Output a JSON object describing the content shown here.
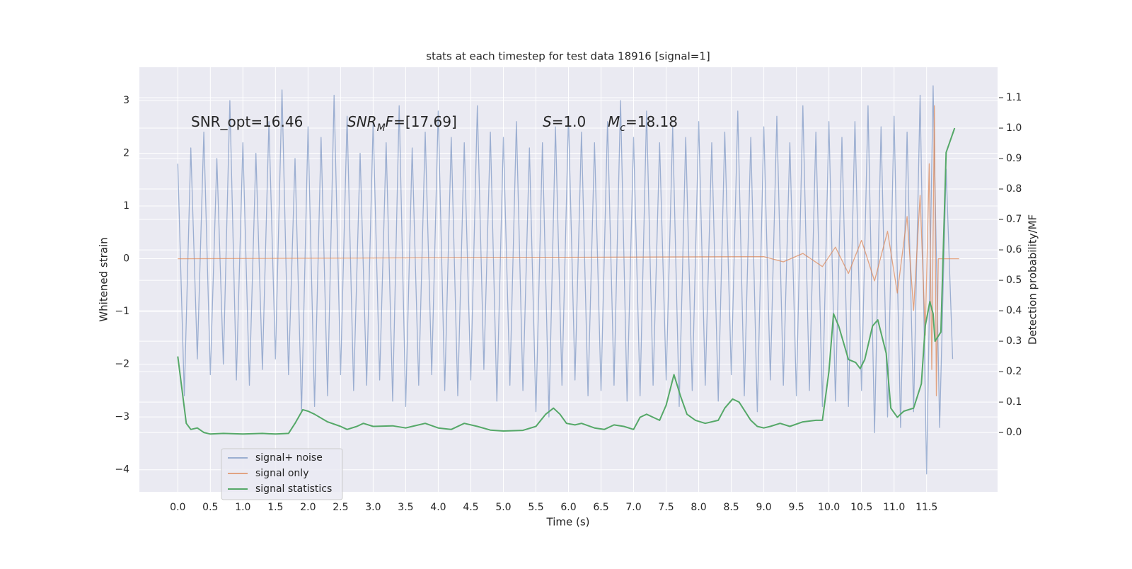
{
  "chart_data": {
    "type": "line",
    "title": "stats at each timestep for test data 18916 [signal=1]",
    "xlabel": "Time (s)",
    "ylabel": "Whitened strain",
    "y2label": "Detection probability/MF",
    "xlim": [
      -0.59,
      12.59
    ],
    "ylim": [
      -4.42,
      3.63
    ],
    "y2lim": [
      -0.195,
      1.2
    ],
    "xticks": [
      {
        "value": 0,
        "label": "0.0"
      },
      {
        "value": 0.5,
        "label": "0.5"
      },
      {
        "value": 1,
        "label": "1.0"
      },
      {
        "value": 1.5,
        "label": "1.5"
      },
      {
        "value": 2,
        "label": "2.0"
      },
      {
        "value": 2.5,
        "label": "2.5"
      },
      {
        "value": 3,
        "label": "3.0"
      },
      {
        "value": 3.5,
        "label": "3.5"
      },
      {
        "value": 4,
        "label": "4.0"
      },
      {
        "value": 4.5,
        "label": "4.5"
      },
      {
        "value": 5,
        "label": "5.0"
      },
      {
        "value": 5.5,
        "label": "5.5"
      },
      {
        "value": 6,
        "label": "6.0"
      },
      {
        "value": 6.5,
        "label": "6.5"
      },
      {
        "value": 7,
        "label": "7.0"
      },
      {
        "value": 7.5,
        "label": "7.5"
      },
      {
        "value": 8,
        "label": "8.0"
      },
      {
        "value": 8.5,
        "label": "8.5"
      },
      {
        "value": 9,
        "label": "9.0"
      },
      {
        "value": 9.5,
        "label": "9.5"
      },
      {
        "value": 10,
        "label": "10.0"
      },
      {
        "value": 10.5,
        "label": "10.5"
      },
      {
        "value": 11,
        "label": "11.0"
      },
      {
        "value": 11.5,
        "label": "11.5"
      }
    ],
    "yticks": [
      {
        "value": -4,
        "label": "−4"
      },
      {
        "value": -3,
        "label": "−3"
      },
      {
        "value": -2,
        "label": "−2"
      },
      {
        "value": -1,
        "label": "−1"
      },
      0,
      1,
      2,
      3
    ],
    "y2ticks": [
      {
        "value": 0,
        "label": "0.0"
      },
      0.1,
      0.2,
      0.3,
      0.4,
      0.5,
      0.6,
      0.7,
      0.8,
      0.9,
      {
        "value": 1,
        "label": "1.0"
      },
      1.1
    ],
    "grid": true,
    "legend": "lower left",
    "annotations": [
      {
        "segments": [
          {
            "text": "SNR_opt=16.46"
          }
        ]
      },
      {
        "segments": [
          {
            "text": "SNR",
            "style": "italic"
          },
          {
            "text": "M",
            "style": "sub"
          },
          {
            "text": "F",
            "style": "italic"
          },
          {
            "text": "=[17.69]"
          }
        ]
      },
      {
        "segments": [
          {
            "text": "S",
            "style": "italic"
          },
          {
            "text": "=1.0"
          }
        ]
      },
      {
        "segments": [
          {
            "text": "M",
            "style": "italic"
          },
          {
            "text": "c",
            "style": "sub"
          },
          {
            "text": "=18.18"
          }
        ]
      }
    ],
    "series": [
      {
        "name": "signal+ noise",
        "color": "#4c72b0",
        "opacity": 0.5,
        "x": [
          0,
          0.1,
          0.2,
          0.3,
          0.4,
          0.5,
          0.6,
          0.7,
          0.8,
          0.9,
          1,
          1.1,
          1.2,
          1.3,
          1.4,
          1.5,
          1.6,
          1.7,
          1.8,
          1.9,
          2,
          2.1,
          2.2,
          2.3,
          2.4,
          2.5,
          2.6,
          2.7,
          2.8,
          2.9,
          3,
          3.1,
          3.2,
          3.3,
          3.4,
          3.5,
          3.6,
          3.7,
          3.8,
          3.9,
          4,
          4.1,
          4.2,
          4.3,
          4.4,
          4.5,
          4.6,
          4.7,
          4.8,
          4.9,
          5,
          5.1,
          5.2,
          5.3,
          5.4,
          5.5,
          5.6,
          5.7,
          5.8,
          5.9,
          6,
          6.1,
          6.2,
          6.3,
          6.4,
          6.5,
          6.6,
          6.7,
          6.8,
          6.9,
          7,
          7.1,
          7.2,
          7.3,
          7.4,
          7.5,
          7.6,
          7.7,
          7.8,
          7.9,
          8,
          8.1,
          8.2,
          8.3,
          8.4,
          8.5,
          8.6,
          8.7,
          8.8,
          8.9,
          9,
          9.1,
          9.2,
          9.3,
          9.4,
          9.5,
          9.6,
          9.7,
          9.8,
          9.9,
          10,
          10.1,
          10.2,
          10.3,
          10.4,
          10.5,
          10.6,
          10.7,
          10.8,
          10.9,
          11,
          11.1,
          11.2,
          11.3,
          11.4,
          11.5,
          11.6,
          11.7,
          11.8,
          11.9
        ],
        "values": [
          1.8,
          -2.6,
          2.1,
          -1.9,
          2.4,
          -2.2,
          1.9,
          -2.0,
          3.0,
          -2.3,
          2.2,
          -2.4,
          2.0,
          -2.1,
          2.6,
          -1.9,
          3.2,
          -2.2,
          1.9,
          -2.9,
          2.5,
          -2.8,
          2.3,
          -2.6,
          3.1,
          -2.2,
          2.7,
          -2.5,
          2.0,
          -2.4,
          2.6,
          -2.3,
          2.2,
          -2.7,
          2.9,
          -2.8,
          2.1,
          -2.4,
          2.4,
          -2.2,
          2.8,
          -2.5,
          2.3,
          -2.6,
          2.2,
          -2.3,
          2.9,
          -2.1,
          2.4,
          -2.7,
          2.3,
          -2.4,
          2.6,
          -2.5,
          2.1,
          -2.9,
          2.2,
          -3.0,
          2.5,
          -2.4,
          2.7,
          -2.3,
          2.4,
          -2.6,
          2.2,
          -2.5,
          2.6,
          -2.4,
          3.0,
          -2.7,
          2.3,
          -2.6,
          2.8,
          -2.4,
          2.2,
          -2.3,
          2.5,
          -2.8,
          2.3,
          -2.5,
          2.6,
          -2.4,
          2.2,
          -2.7,
          2.4,
          -2.2,
          2.8,
          -2.6,
          2.3,
          -2.9,
          2.5,
          -2.3,
          2.7,
          -2.4,
          2.2,
          -2.6,
          2.9,
          -2.5,
          2.4,
          -2.8,
          2.6,
          -2.7,
          2.3,
          -2.8,
          2.6,
          -2.5,
          2.9,
          -3.3,
          2.5,
          -3.0,
          2.7,
          -3.2,
          2.4,
          -2.9,
          3.1,
          -4.08,
          3.28,
          -3.2,
          1.7,
          -1.9
        ]
      },
      {
        "name": "signal only",
        "color": "#dd8452",
        "opacity": 0.7,
        "x": [
          0,
          9,
          9.3,
          9.6,
          9.9,
          10.1,
          10.3,
          10.5,
          10.7,
          10.9,
          11.05,
          11.2,
          11.3,
          11.4,
          11.48,
          11.54,
          11.58,
          11.62,
          11.65,
          11.68,
          12
        ],
        "values": [
          0,
          0.04,
          -0.06,
          0.1,
          -0.15,
          0.22,
          -0.28,
          0.35,
          -0.42,
          0.52,
          -0.65,
          0.8,
          -0.98,
          1.2,
          -1.45,
          1.8,
          -2.1,
          2.9,
          -2.6,
          0,
          0
        ]
      },
      {
        "name": "signal statistics",
        "color": "#55a868",
        "opacity": 1,
        "axis": "y2",
        "x": [
          0,
          0.13,
          0.2,
          0.3,
          0.4,
          0.5,
          0.7,
          1.0,
          1.3,
          1.5,
          1.7,
          1.8,
          1.92,
          2.0,
          2.1,
          2.3,
          2.5,
          2.6,
          2.75,
          2.85,
          3.0,
          3.3,
          3.5,
          3.6,
          3.8,
          4.0,
          4.2,
          4.4,
          4.6,
          4.8,
          5.0,
          5.3,
          5.5,
          5.65,
          5.77,
          5.87,
          5.97,
          6.1,
          6.2,
          6.4,
          6.55,
          6.7,
          6.85,
          7.0,
          7.1,
          7.2,
          7.3,
          7.4,
          7.5,
          7.62,
          7.72,
          7.82,
          7.95,
          8.1,
          8.3,
          8.4,
          8.52,
          8.62,
          8.8,
          8.9,
          9.0,
          9.1,
          9.25,
          9.4,
          9.6,
          9.8,
          9.9,
          10.0,
          10.07,
          10.15,
          10.3,
          10.41,
          10.48,
          10.55,
          10.67,
          10.75,
          10.88,
          10.95,
          11.05,
          11.15,
          11.3,
          11.42,
          11.48,
          11.55,
          11.6,
          11.63,
          11.72,
          11.8,
          11.93
        ],
        "values": [
          0.25,
          0.03,
          0.01,
          0.015,
          0.0,
          -0.005,
          -0.003,
          -0.005,
          -0.003,
          -0.005,
          -0.003,
          0.03,
          0.075,
          0.07,
          0.06,
          0.035,
          0.02,
          0.01,
          0.02,
          0.03,
          0.02,
          0.022,
          0.015,
          0.02,
          0.03,
          0.015,
          0.01,
          0.03,
          0.02,
          0.008,
          0.005,
          0.007,
          0.02,
          0.06,
          0.08,
          0.06,
          0.03,
          0.025,
          0.03,
          0.015,
          0.01,
          0.025,
          0.02,
          0.01,
          0.05,
          0.06,
          0.05,
          0.04,
          0.09,
          0.19,
          0.12,
          0.06,
          0.04,
          0.03,
          0.04,
          0.08,
          0.11,
          0.1,
          0.04,
          0.02,
          0.015,
          0.02,
          0.03,
          0.02,
          0.035,
          0.04,
          0.04,
          0.2,
          0.39,
          0.35,
          0.24,
          0.23,
          0.21,
          0.24,
          0.35,
          0.37,
          0.26,
          0.08,
          0.05,
          0.07,
          0.08,
          0.16,
          0.35,
          0.43,
          0.39,
          0.3,
          0.33,
          0.92,
          1.0
        ]
      }
    ]
  }
}
